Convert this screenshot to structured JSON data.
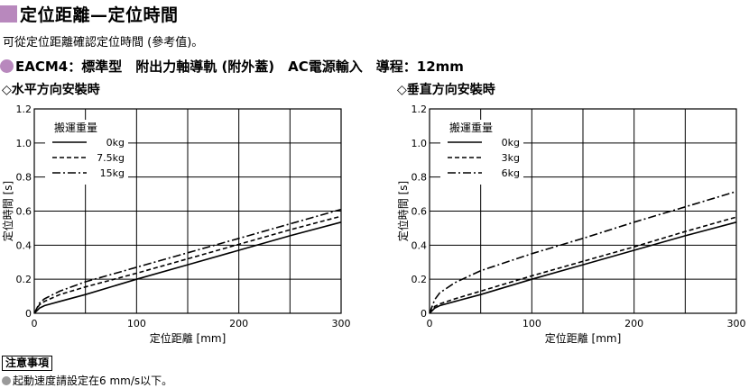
{
  "title": "定位距離—定位時間",
  "intro": "可從定位距離確認定位時間 (參考值)。",
  "model_line": "EACM4：標準型　附出力軸導軌 (附外蓋)　AC電源輸入　導程：12mm",
  "accent_color": "#b888bd",
  "chart_data": [
    {
      "type": "line",
      "heading": "◇水平方向安裝時",
      "xlabel": "定位距離 [mm]",
      "ylabel": "定位時間 [s]",
      "xlim": [
        0,
        300
      ],
      "ylim": [
        0,
        1.2
      ],
      "xticks": [
        "0",
        "100",
        "200",
        "300"
      ],
      "yticks": [
        "0",
        "0.2",
        "0.4",
        "0.6",
        "0.8",
        "1.0",
        "1.2"
      ],
      "grid": true,
      "legend_title": "搬運重量",
      "legend_position": "top-left",
      "series": [
        {
          "name": "0kg",
          "style": "solid",
          "x": [
            0,
            5,
            10,
            25,
            50,
            100,
            150,
            200,
            250,
            300
          ],
          "y": [
            0,
            0.03,
            0.045,
            0.07,
            0.11,
            0.2,
            0.285,
            0.37,
            0.455,
            0.535
          ]
        },
        {
          "name": "7.5kg",
          "style": "dashed",
          "x": [
            0,
            5,
            10,
            25,
            50,
            100,
            150,
            200,
            250,
            300
          ],
          "y": [
            0,
            0.05,
            0.07,
            0.11,
            0.155,
            0.235,
            0.32,
            0.405,
            0.49,
            0.57
          ]
        },
        {
          "name": "15kg",
          "style": "dashdot",
          "x": [
            0,
            5,
            10,
            25,
            50,
            100,
            150,
            200,
            250,
            300
          ],
          "y": [
            0,
            0.06,
            0.085,
            0.13,
            0.185,
            0.27,
            0.355,
            0.44,
            0.525,
            0.61
          ]
        }
      ]
    },
    {
      "type": "line",
      "heading": "◇垂直方向安裝時",
      "xlabel": "定位距離 [mm]",
      "ylabel": "定位時間 [s]",
      "xlim": [
        0,
        300
      ],
      "ylim": [
        0,
        1.2
      ],
      "xticks": [
        "0",
        "100",
        "200",
        "300"
      ],
      "yticks": [
        "0",
        "0.2",
        "0.4",
        "0.6",
        "0.8",
        "1.0",
        "1.2"
      ],
      "grid": true,
      "legend_title": "搬運重量",
      "legend_position": "top-left",
      "series": [
        {
          "name": "0kg",
          "style": "solid",
          "x": [
            0,
            5,
            10,
            25,
            50,
            100,
            150,
            200,
            250,
            300
          ],
          "y": [
            0,
            0.03,
            0.045,
            0.07,
            0.11,
            0.2,
            0.285,
            0.37,
            0.455,
            0.535
          ]
        },
        {
          "name": "3kg",
          "style": "dashed",
          "x": [
            0,
            5,
            10,
            25,
            50,
            100,
            150,
            200,
            250,
            300
          ],
          "y": [
            0,
            0.04,
            0.055,
            0.085,
            0.13,
            0.22,
            0.305,
            0.39,
            0.48,
            0.565
          ]
        },
        {
          "name": "6kg",
          "style": "dashdot",
          "x": [
            0,
            5,
            10,
            25,
            50,
            100,
            150,
            200,
            250,
            300
          ],
          "y": [
            0,
            0.08,
            0.12,
            0.18,
            0.25,
            0.35,
            0.44,
            0.535,
            0.625,
            0.715
          ]
        }
      ]
    }
  ],
  "notice": {
    "label": "注意事項",
    "text": "起動速度請設定在6 mm/s以下。"
  }
}
